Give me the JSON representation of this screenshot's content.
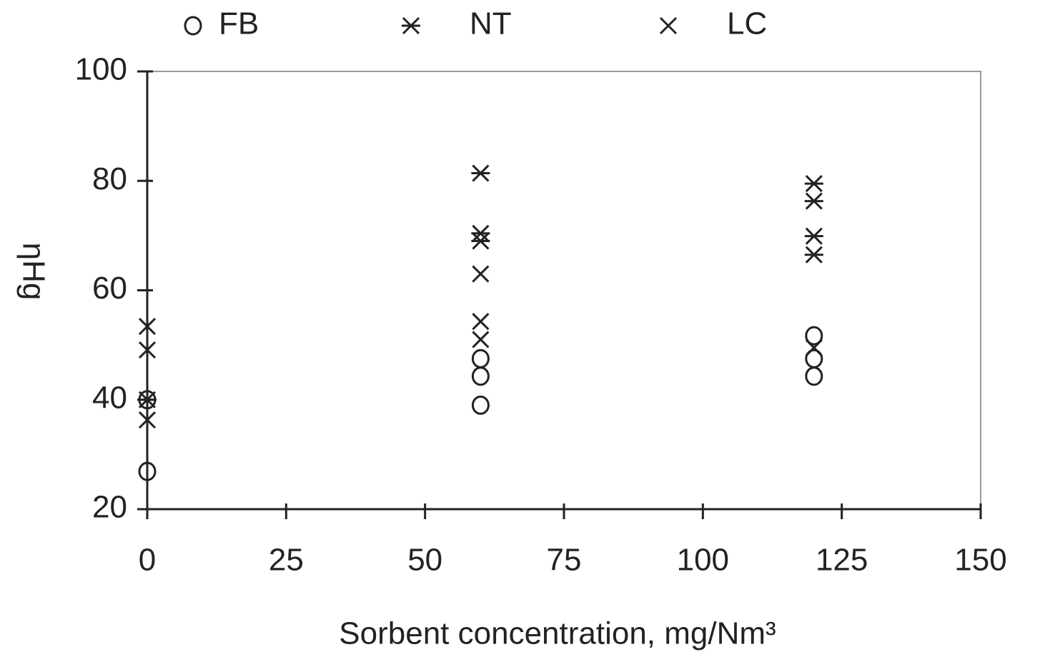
{
  "chart_data": {
    "type": "scatter",
    "xlabel": "Sorbent concentration, mg/Nm³",
    "ylabel": "ηHg",
    "xlim": [
      0,
      150
    ],
    "xticks": [
      0,
      25,
      50,
      75,
      100,
      125,
      150
    ],
    "ylim": [
      20,
      100
    ],
    "yticks": [
      20,
      40,
      60,
      80,
      100
    ],
    "legend": "top",
    "series": [
      {
        "name": "FB",
        "color": "#222222",
        "marker": "circle",
        "x": [
          0,
          0,
          60,
          60,
          60,
          120,
          120,
          120
        ],
        "values": [
          40,
          26.9,
          39,
          44.3,
          47.5,
          44.3,
          47.5,
          51.7
        ]
      },
      {
        "name": "NT",
        "color": "#222222",
        "marker": "asterisk",
        "x": [
          0,
          60,
          60,
          60,
          120,
          120,
          120,
          120
        ],
        "values": [
          40,
          81.4,
          70.4,
          69,
          79.5,
          76.3,
          69.9,
          66.5
        ]
      },
      {
        "name": "LC",
        "color": "#222222",
        "marker": "x",
        "x": [
          0,
          0,
          0,
          60,
          60,
          60,
          120
        ],
        "values": [
          53.4,
          49.1,
          36.3,
          63,
          54.3,
          51,
          49.5
        ]
      }
    ]
  }
}
